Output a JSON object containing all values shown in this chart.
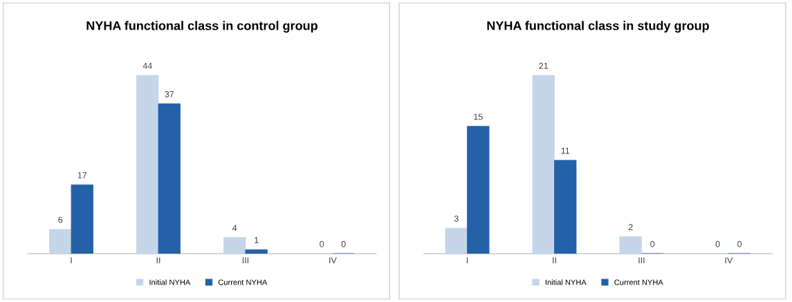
{
  "chart_data": [
    {
      "type": "bar",
      "title": "NYHA functional class in control group",
      "categories": [
        "I",
        "II",
        "III",
        "IV"
      ],
      "series": [
        {
          "name": "Initial NYHA",
          "color": "#c5d5ea",
          "values": [
            6,
            44,
            4,
            0
          ]
        },
        {
          "name": "Current NYHA",
          "color": "#2461a9",
          "values": [
            17,
            37,
            1,
            0
          ]
        }
      ],
      "data_labels": true,
      "legend": "bottom",
      "grid": false,
      "tick_labels": "x"
    },
    {
      "type": "bar",
      "title": "NYHA functional class in study group",
      "categories": [
        "I",
        "II",
        "III",
        "IV"
      ],
      "series": [
        {
          "name": "Initial NYHA",
          "color": "#c5d5ea",
          "values": [
            3,
            21,
            2,
            0
          ]
        },
        {
          "name": "Current NYHA",
          "color": "#2461a9",
          "values": [
            15,
            11,
            0,
            0
          ]
        }
      ],
      "data_labels": true,
      "legend": "bottom",
      "grid": false,
      "tick_labels": "x"
    }
  ]
}
